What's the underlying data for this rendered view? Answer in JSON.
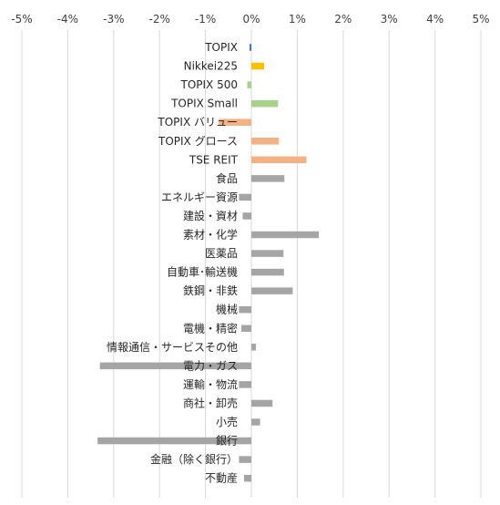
{
  "chart_data": {
    "type": "bar",
    "orientation": "horizontal",
    "title": "",
    "xlabel": "",
    "ylabel": "",
    "xlim": [
      -5,
      5
    ],
    "x_ticks": [
      "-5%",
      "-4%",
      "-3%",
      "-2%",
      "-1%",
      "0%",
      "1%",
      "2%",
      "3%",
      "4%",
      "5%"
    ],
    "x_tick_position": "top",
    "grid": {
      "vertical": true,
      "horizontal": false
    },
    "legend": "none",
    "categories": [
      "TOPIX",
      "Nikkei225",
      "TOPIX 500",
      "TOPIX Small",
      "TOPIX バリュー",
      "TOPIX グロース",
      "TSE REIT",
      "食品",
      "エネルギー資源",
      "建設・資材",
      "素材・化学",
      "医薬品",
      "自動車･輸送機",
      "鉄鋼・非鉄",
      "機械",
      "電機・精密",
      "情報通信・サービスその他",
      "電力・ガス",
      "運輸・物流",
      "商社・卸売",
      "小売",
      "銀行",
      "金融（除く銀行）",
      "不動産"
    ],
    "values": [
      -0.04,
      0.28,
      -0.09,
      0.58,
      -0.71,
      0.6,
      1.2,
      0.72,
      -0.27,
      -0.19,
      1.47,
      0.7,
      0.71,
      0.9,
      -0.27,
      -0.22,
      0.1,
      -3.3,
      -0.27,
      0.46,
      0.19,
      -3.35,
      -0.27,
      -0.16
    ],
    "bar_colors": [
      "#4472c4",
      "#ffc000",
      "#a9d18e",
      "#a9d18e",
      "#f4b183",
      "#f4b183",
      "#f4b183",
      "#a5a5a5",
      "#a5a5a5",
      "#a5a5a5",
      "#a5a5a5",
      "#a5a5a5",
      "#a5a5a5",
      "#a5a5a5",
      "#a5a5a5",
      "#a5a5a5",
      "#a5a5a5",
      "#a5a5a5",
      "#a5a5a5",
      "#a5a5a5",
      "#a5a5a5",
      "#a5a5a5",
      "#a5a5a5",
      "#a5a5a5"
    ],
    "gridline_color": "#d9d9d9"
  }
}
